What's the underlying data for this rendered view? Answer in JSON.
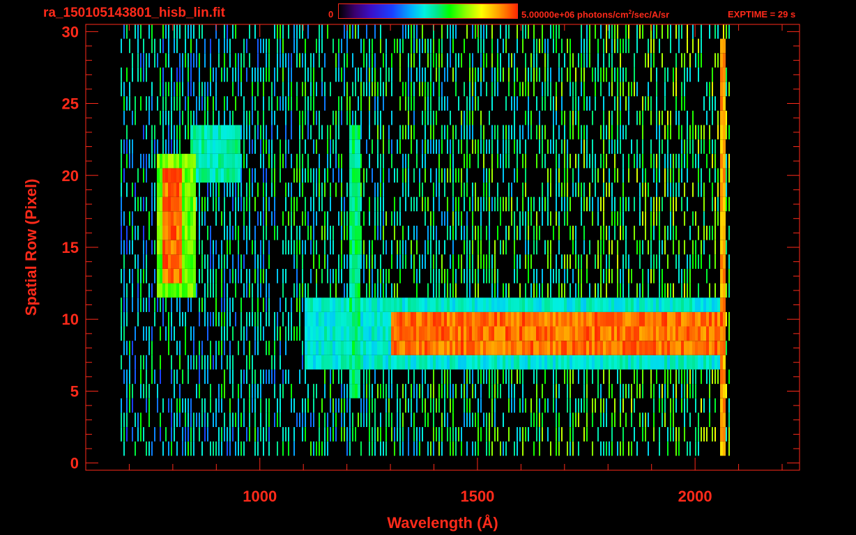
{
  "header": {
    "title": "ra_150105143801_hisb_lin.fit",
    "colorbar_min": "0",
    "colorbar_max_value": "5.00000e+06 photons/cm",
    "colorbar_max_sup": "2",
    "colorbar_max_units": "/sec/A/sr",
    "exptime": "EXPTIME = 29 s"
  },
  "colors": {
    "axis": "#ff2a1a",
    "background": "#000000"
  },
  "chart_data": {
    "type": "heatmap",
    "xlabel": "Wavelength (Å)",
    "ylabel": "Spatial Row (Pixel)",
    "xlim": [
      600,
      2240
    ],
    "ylim": [
      -0.5,
      30.5
    ],
    "x_ticks": [
      1000,
      1500,
      2000
    ],
    "y_ticks": [
      0,
      5,
      10,
      15,
      20,
      25,
      30
    ],
    "colorbar_range": [
      0,
      5000000
    ],
    "colormap": "rainbow",
    "features": [
      {
        "x_range": [
          1300,
          2065
        ],
        "y_range": [
          8,
          10
        ],
        "intensity": 1.0
      },
      {
        "x_range": [
          1100,
          2065
        ],
        "y_range": [
          7,
          11
        ],
        "intensity": 0.55
      },
      {
        "x_range": [
          1205,
          1230
        ],
        "y_range": [
          5,
          23
        ],
        "intensity": 0.62
      },
      {
        "x_range": [
          775,
          815
        ],
        "y_range": [
          13,
          20
        ],
        "intensity": 1.0
      },
      {
        "x_range": [
          760,
          850
        ],
        "y_range": [
          12,
          21
        ],
        "intensity": 0.75
      },
      {
        "x_range": [
          840,
          950
        ],
        "y_range": [
          20,
          23
        ],
        "intensity": 0.58
      },
      {
        "x_range": [
          2055,
          2065
        ],
        "y_range": [
          1,
          29
        ],
        "intensity": 0.95
      }
    ],
    "noise_region": {
      "x_range": [
        680,
        2080
      ],
      "y_range": [
        1,
        30
      ]
    }
  }
}
